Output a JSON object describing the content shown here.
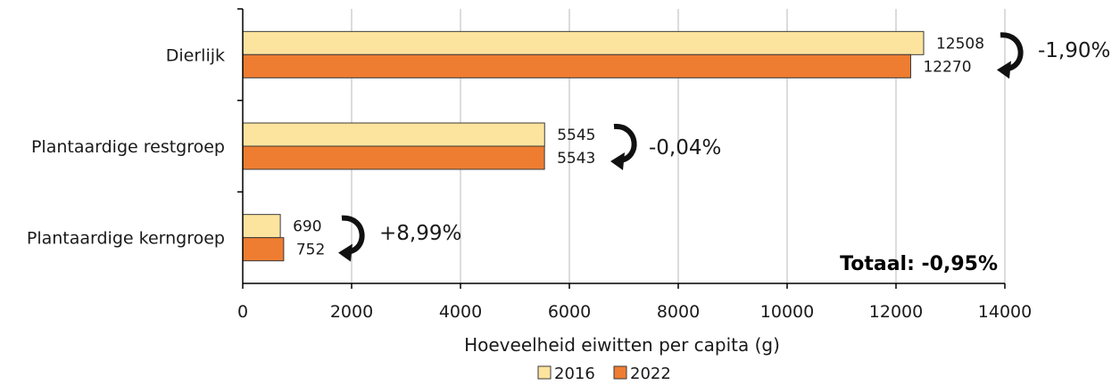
{
  "colors": {
    "series_2016": "#FDE49E",
    "series_2022": "#EE7D31",
    "bar_stroke": "#3a3a3a",
    "grid": "#d0d0d0",
    "axis": "#000000",
    "arrow": "#111111"
  },
  "chart_data": {
    "type": "bar",
    "orientation": "horizontal",
    "categories": [
      "Dierlijk",
      "Plantaardige restgroep",
      "Plantaardige kerngroep"
    ],
    "series": [
      {
        "name": "2016",
        "values": [
          12508,
          5545,
          690
        ]
      },
      {
        "name": "2022",
        "values": [
          12270,
          5543,
          752
        ]
      }
    ],
    "value_labels": [
      [
        "12508",
        "5545",
        "690"
      ],
      [
        "12270",
        "5543",
        "752"
      ]
    ],
    "changes": [
      "-1,90%",
      "-0,04%",
      "+8,99%"
    ],
    "xlabel": "Hoeveelheid eiwitten per capita (g)",
    "ylabel": "",
    "xlim": [
      0,
      14000
    ],
    "xticks": [
      0,
      2000,
      4000,
      6000,
      8000,
      10000,
      12000,
      14000
    ],
    "xtick_labels": [
      "0",
      "2000",
      "4000",
      "6000",
      "8000",
      "10000",
      "12000",
      "14000"
    ],
    "grid": true,
    "legend_position": "bottom",
    "annotation": "Totaal: -0,95%"
  }
}
